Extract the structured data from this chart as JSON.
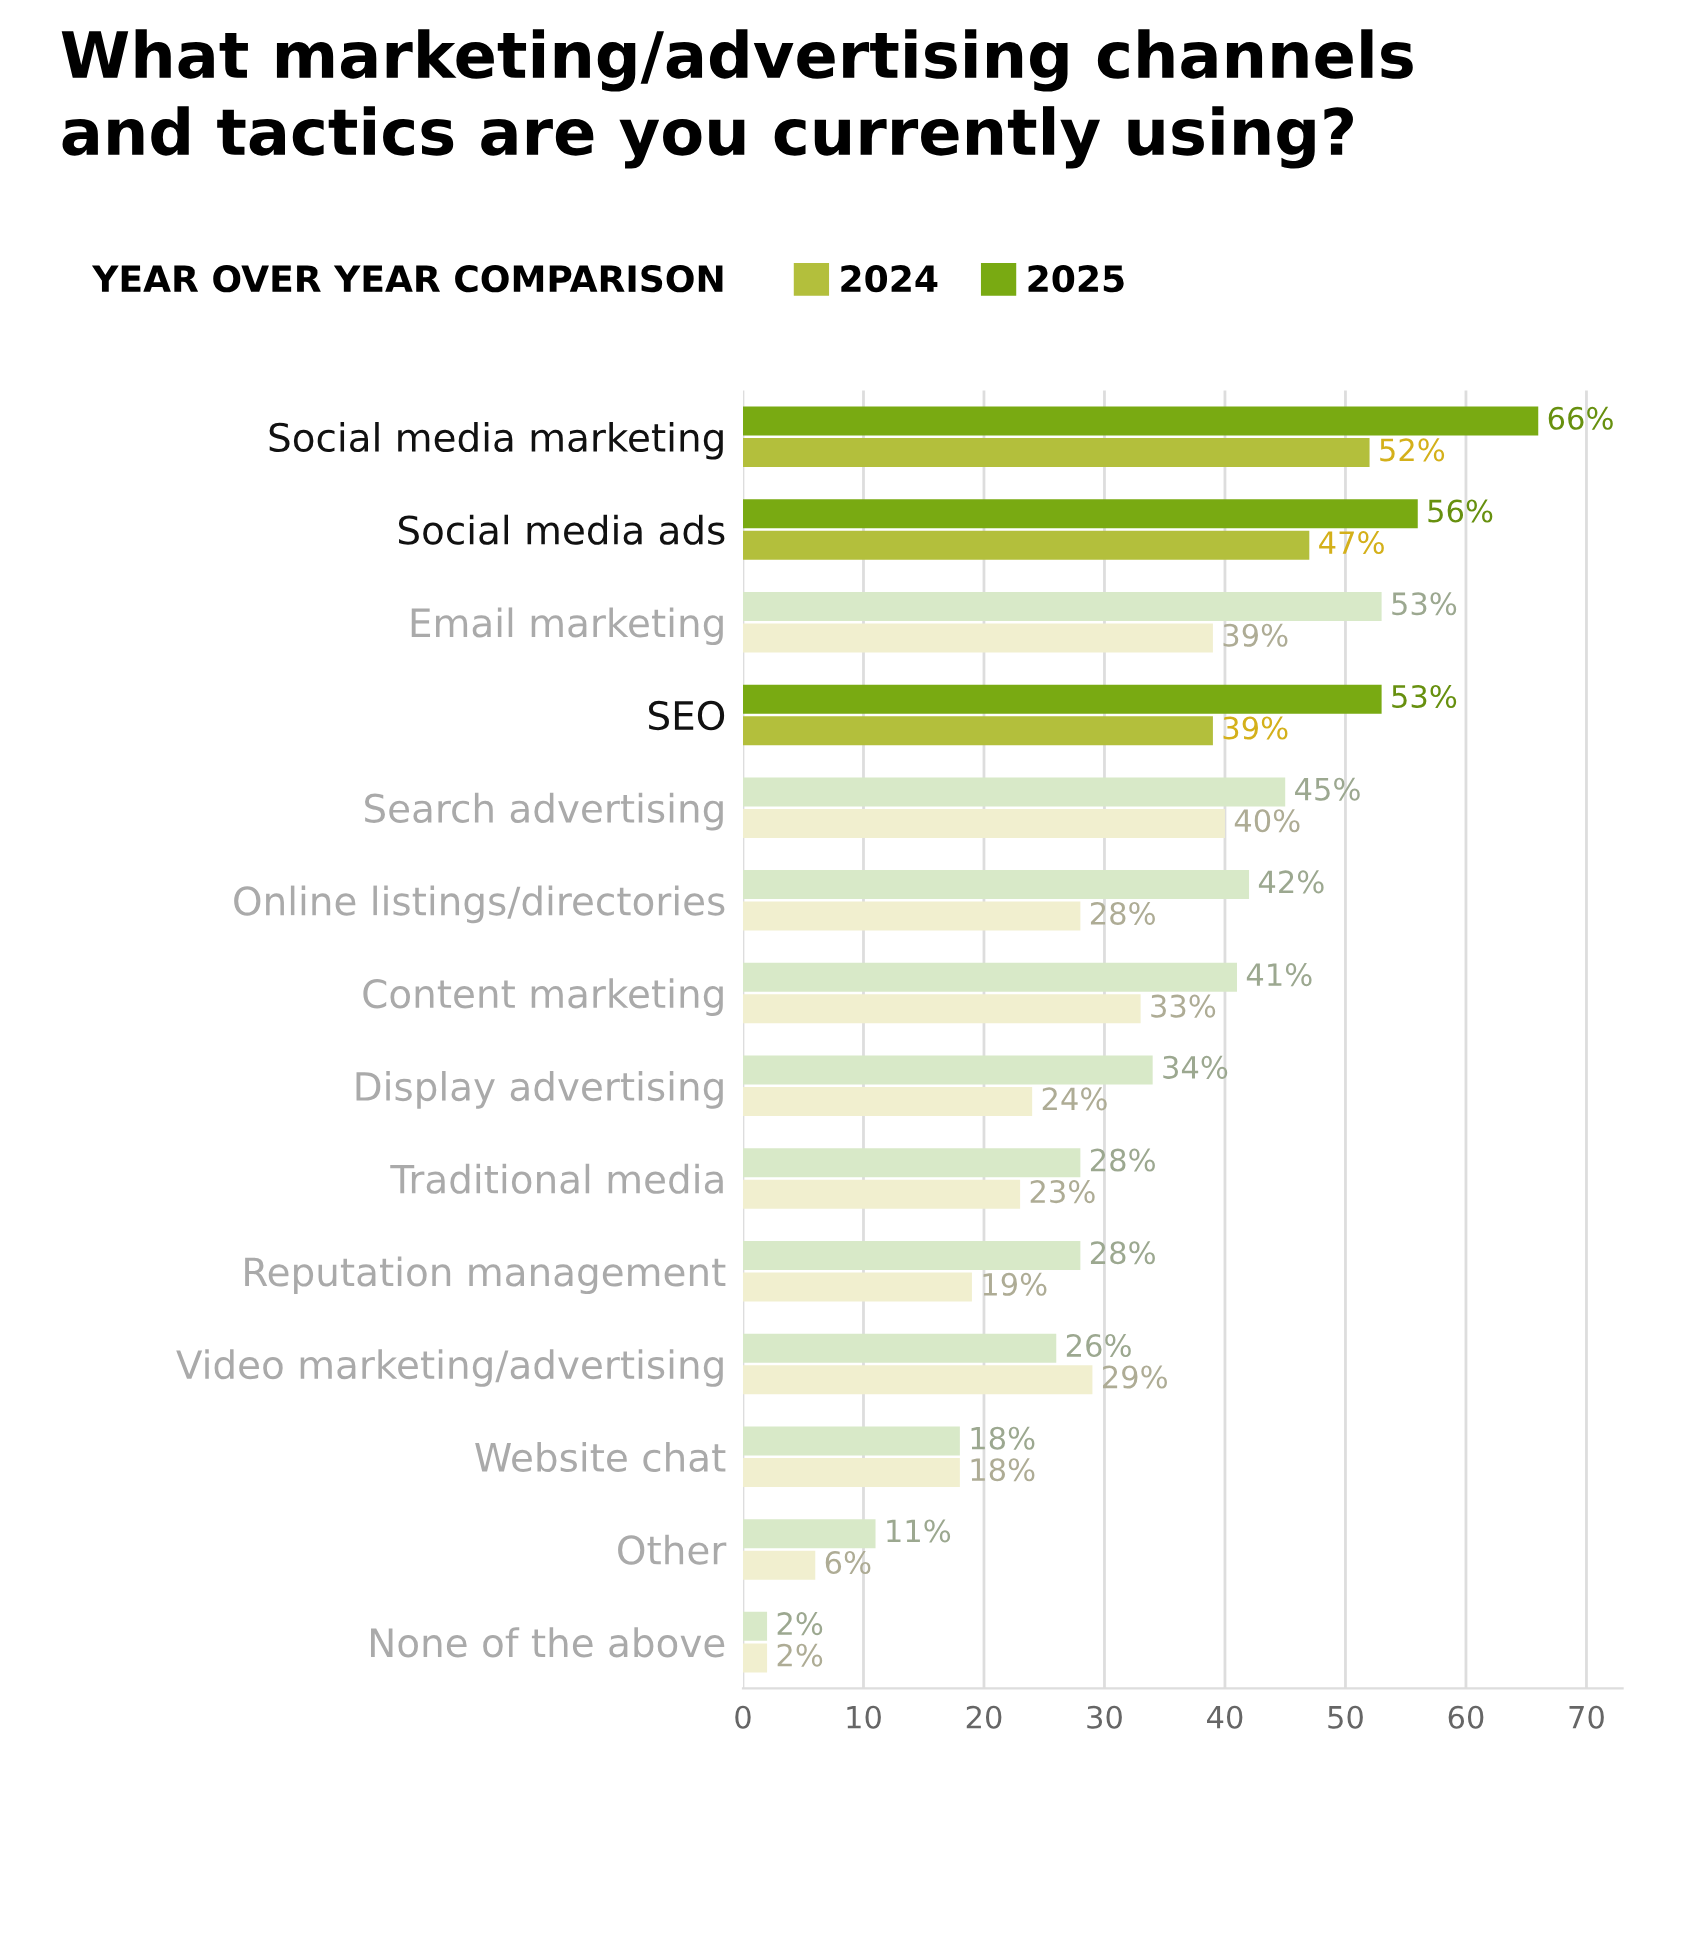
{
  "chart_data": {
    "type": "bar",
    "orientation": "horizontal",
    "title": "What marketing/advertising channels\nand tactics are you currently using?",
    "legend_title": "YEAR OVER YEAR COMPARISON",
    "legend": "top left",
    "categories": [
      "Social media marketing",
      "Social media ads",
      "Email marketing",
      "SEO",
      "Search advertising",
      "Online listings/directories",
      "Content marketing",
      "Display advertising",
      "Traditional media",
      "Reputation management",
      "Video marketing/advertising",
      "Website chat",
      "Other",
      "None of the above"
    ],
    "series": [
      {
        "name": "2024",
        "color": "#b3bf3c",
        "values": [
          52,
          47,
          39,
          39,
          40,
          28,
          33,
          24,
          23,
          19,
          29,
          18,
          6,
          2
        ],
        "value_labels": [
          "52%",
          "47%",
          "39%",
          "39%",
          "40%",
          "28%",
          "33%",
          "24%",
          "23%",
          "19%",
          "29%",
          "18%",
          "6%",
          "2%"
        ],
        "colors": [
          "#b3bf3c",
          "#b3bf3c",
          "#f1efcf",
          "#b3bf3c",
          "#f1efcf",
          "#f1efcf",
          "#f1efcf",
          "#f1efcf",
          "#f1efcf",
          "#f1efcf",
          "#f1efcf",
          "#f1efcf",
          "#f1efcf",
          "#f1efcf"
        ]
      },
      {
        "name": "2025",
        "color": "#79aa12",
        "values": [
          66,
          56,
          53,
          53,
          45,
          42,
          41,
          34,
          28,
          28,
          26,
          18,
          11,
          2
        ],
        "value_labels": [
          "66%",
          "56%",
          "53%",
          "53%",
          "45%",
          "42%",
          "41%",
          "34%",
          "28%",
          "28%",
          "26%",
          "18%",
          "11%",
          "2%"
        ],
        "colors": [
          "#79aa12",
          "#79aa12",
          "#d8e9c8",
          "#79aa12",
          "#d8e9c8",
          "#d8e9c8",
          "#d8e9c8",
          "#d8e9c8",
          "#d8e9c8",
          "#d8e9c8",
          "#d8e9c8",
          "#d8e9c8",
          "#d8e9c8",
          "#d8e9c8"
        ]
      }
    ],
    "xlim": [
      0,
      73
    ],
    "xticks": [
      0,
      10,
      20,
      30,
      40,
      50,
      60,
      70
    ],
    "grid": "x"
  }
}
